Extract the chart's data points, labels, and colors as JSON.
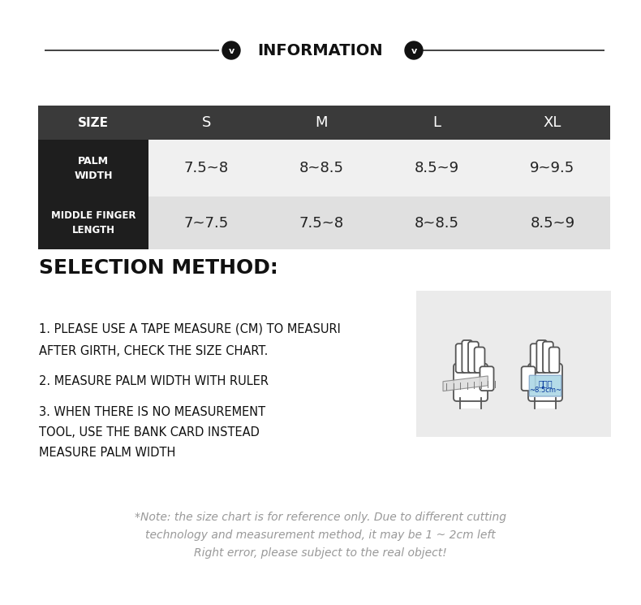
{
  "bg_color": "#ffffff",
  "header_bg": "#3a3a3a",
  "label_bg": "#1e1e1e",
  "row1_data_bg": "#f0f0f0",
  "row2_data_bg": "#e0e0e0",
  "header_text_color": "#ffffff",
  "label_text_color": "#ffffff",
  "data_text_color": "#222222",
  "line_color": "#333333",
  "sizes": [
    "S",
    "M",
    "L",
    "XL"
  ],
  "size_label": "SIZE",
  "row1_label": "PALM\nWIDTH",
  "row2_label": "MIDDLE FINGER\nLENGTH",
  "row1_values": [
    "7.5~8",
    "8~8.5",
    "8.5~9",
    "9~9.5"
  ],
  "row2_values": [
    "7~7.5",
    "7.5~8",
    "8~8.5",
    "8.5~9"
  ],
  "info_title": "INFORMATION",
  "selection_title": "SELECTION METHOD:",
  "instr1_line1": "1. PLEASE USE A TAPE MEASURE (CM) TO MEASURI",
  "instr1_line2": "AFTER GIRTH, CHECK THE SIZE CHART.",
  "instr2": "2. MEASURE PALM WIDTH WITH RULER",
  "instr3_line1": "3. WHEN THERE IS NO MEASUREMENT",
  "instr3_line2": "TOOL, USE THE BANK CARD INSTEAD",
  "instr3_line3": "MEASURE PALM WIDTH",
  "note_line1": "*Note: the size chart is for reference only. Due to different cutting",
  "note_line2": "technology and measurement method, it may be 1 ~ 2cm left",
  "note_line3": "Right error, please subject to the real object!",
  "card_text1": "銀行卡",
  "card_text2": "~8.5cm~",
  "img_box_bg": "#ebebeb",
  "card_bg": "#add8e6",
  "card_border": "#88aacc"
}
